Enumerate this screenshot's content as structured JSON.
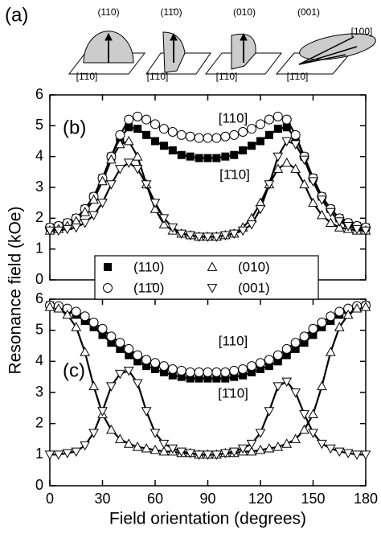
{
  "panel_a": {
    "label": "(a)",
    "planes": [
      {
        "label": "(110)",
        "direction": "[1̄10]"
      },
      {
        "label": "(11̄0)",
        "direction": "[1̄10]"
      },
      {
        "label": "(010)",
        "direction": "[1̄10]"
      },
      {
        "label": "(001)",
        "direction": "[1̄10]",
        "extra": "[100]"
      }
    ]
  },
  "chart_data": [
    {
      "type": "scatter",
      "panel_label": "(b)",
      "ylabel": "Resonance field (kOe)",
      "annotations": [
        "[110]",
        "[1̄10]"
      ],
      "x": [
        0,
        5,
        10,
        15,
        20,
        25,
        30,
        35,
        40,
        45,
        50,
        55,
        60,
        65,
        70,
        75,
        80,
        85,
        90,
        95,
        100,
        105,
        110,
        115,
        120,
        125,
        130,
        135,
        140,
        145,
        150,
        155,
        160,
        165,
        170,
        175,
        180
      ],
      "xlim": [
        0,
        180
      ],
      "xticks": [
        0,
        30,
        60,
        90,
        120,
        150,
        180
      ],
      "ylim": [
        0,
        6
      ],
      "yticks": [
        0,
        1,
        2,
        3,
        4,
        5,
        6
      ],
      "series": [
        {
          "name": "(110)",
          "marker": "square",
          "color": "#000000",
          "values": [
            1.7,
            1.75,
            1.85,
            2.0,
            2.3,
            2.7,
            3.3,
            4.0,
            4.6,
            4.95,
            4.9,
            4.7,
            4.5,
            4.35,
            4.2,
            4.05,
            4.0,
            3.95,
            3.95,
            3.95,
            4.0,
            4.05,
            4.2,
            4.35,
            4.5,
            4.7,
            4.9,
            4.95,
            4.6,
            4.0,
            3.3,
            2.7,
            2.3,
            2.0,
            1.85,
            1.75,
            1.7
          ]
        },
        {
          "name": "(11̄0)",
          "marker": "circle",
          "color": "#000000",
          "values": [
            1.7,
            1.75,
            1.85,
            2.0,
            2.3,
            2.7,
            3.3,
            4.0,
            4.7,
            5.2,
            5.3,
            5.2,
            5.05,
            4.9,
            4.8,
            4.7,
            4.65,
            4.6,
            4.6,
            4.6,
            4.65,
            4.7,
            4.8,
            4.9,
            5.05,
            5.2,
            5.3,
            5.2,
            4.7,
            4.0,
            3.3,
            2.7,
            2.3,
            2.0,
            1.85,
            1.75,
            1.7
          ]
        },
        {
          "name": "(010)",
          "marker": "triangle-up",
          "color": "#000000",
          "values": [
            1.6,
            1.65,
            1.75,
            1.9,
            2.2,
            2.6,
            3.2,
            3.9,
            4.4,
            4.5,
            4.0,
            3.1,
            2.3,
            1.8,
            1.6,
            1.5,
            1.45,
            1.4,
            1.4,
            1.4,
            1.45,
            1.5,
            1.7,
            2.0,
            2.5,
            3.1,
            3.6,
            3.8,
            3.6,
            3.1,
            2.5,
            2.1,
            1.85,
            1.7,
            1.65,
            1.6,
            1.6
          ]
        },
        {
          "name": "(001)",
          "marker": "triangle-down",
          "color": "#000000",
          "values": [
            1.6,
            1.6,
            1.65,
            1.7,
            1.85,
            2.1,
            2.5,
            3.1,
            3.6,
            3.8,
            3.6,
            3.1,
            2.5,
            2.0,
            1.7,
            1.5,
            1.45,
            1.4,
            1.4,
            1.4,
            1.45,
            1.5,
            1.6,
            1.8,
            2.3,
            3.1,
            4.0,
            4.5,
            4.4,
            3.9,
            3.2,
            2.6,
            2.2,
            1.9,
            1.75,
            1.65,
            1.6
          ]
        }
      ]
    },
    {
      "type": "scatter",
      "panel_label": "(c)",
      "xlabel": "Field orientation (degrees)",
      "annotations": [
        "[110]",
        "[1̄10]"
      ],
      "x": [
        0,
        5,
        10,
        15,
        20,
        25,
        30,
        35,
        40,
        45,
        50,
        55,
        60,
        65,
        70,
        75,
        80,
        85,
        90,
        95,
        100,
        105,
        110,
        115,
        120,
        125,
        130,
        135,
        140,
        145,
        150,
        155,
        160,
        165,
        170,
        175,
        180
      ],
      "xlim": [
        0,
        180
      ],
      "xticks": [
        0,
        30,
        60,
        90,
        120,
        150,
        180
      ],
      "ylim": [
        0,
        6
      ],
      "yticks": [
        0,
        1,
        2,
        3,
        4,
        5,
        6
      ],
      "series": [
        {
          "marker": "square",
          "color": "#000000",
          "values": [
            5.8,
            5.75,
            5.65,
            5.5,
            5.3,
            5.1,
            4.85,
            4.6,
            4.4,
            4.2,
            4.0,
            3.85,
            3.75,
            3.65,
            3.55,
            3.5,
            3.45,
            3.45,
            3.45,
            3.45,
            3.45,
            3.5,
            3.55,
            3.65,
            3.75,
            3.85,
            4.0,
            4.2,
            4.4,
            4.6,
            4.85,
            5.1,
            5.3,
            5.5,
            5.65,
            5.75,
            5.8
          ]
        },
        {
          "marker": "circle",
          "color": "#000000",
          "values": [
            5.8,
            5.78,
            5.7,
            5.6,
            5.45,
            5.25,
            5.05,
            4.8,
            4.6,
            4.4,
            4.2,
            4.05,
            3.95,
            3.85,
            3.75,
            3.7,
            3.65,
            3.65,
            3.65,
            3.65,
            3.65,
            3.7,
            3.75,
            3.85,
            3.95,
            4.05,
            4.2,
            4.4,
            4.6,
            4.8,
            5.05,
            5.25,
            5.45,
            5.6,
            5.7,
            5.78,
            5.8
          ]
        },
        {
          "marker": "triangle-up",
          "color": "#000000",
          "values": [
            5.75,
            5.7,
            5.5,
            5.1,
            4.3,
            3.2,
            2.3,
            1.8,
            1.5,
            1.35,
            1.25,
            1.2,
            1.15,
            1.1,
            1.1,
            1.05,
            1.05,
            1.0,
            1.0,
            1.0,
            1.05,
            1.05,
            1.1,
            1.1,
            1.15,
            1.2,
            1.25,
            1.35,
            1.5,
            1.8,
            2.3,
            3.2,
            4.3,
            5.1,
            5.5,
            5.7,
            5.75
          ]
        },
        {
          "marker": "triangle-down",
          "color": "#000000",
          "values": [
            1.0,
            1.0,
            1.05,
            1.1,
            1.3,
            1.7,
            2.4,
            3.2,
            3.6,
            3.7,
            3.3,
            2.4,
            1.7,
            1.35,
            1.2,
            1.1,
            1.05,
            1.0,
            1.0,
            1.0,
            1.05,
            1.1,
            1.2,
            1.35,
            1.7,
            2.4,
            3.2,
            3.35,
            3.0,
            2.3,
            1.7,
            1.35,
            1.2,
            1.1,
            1.05,
            1.0,
            1.0
          ]
        }
      ]
    }
  ]
}
